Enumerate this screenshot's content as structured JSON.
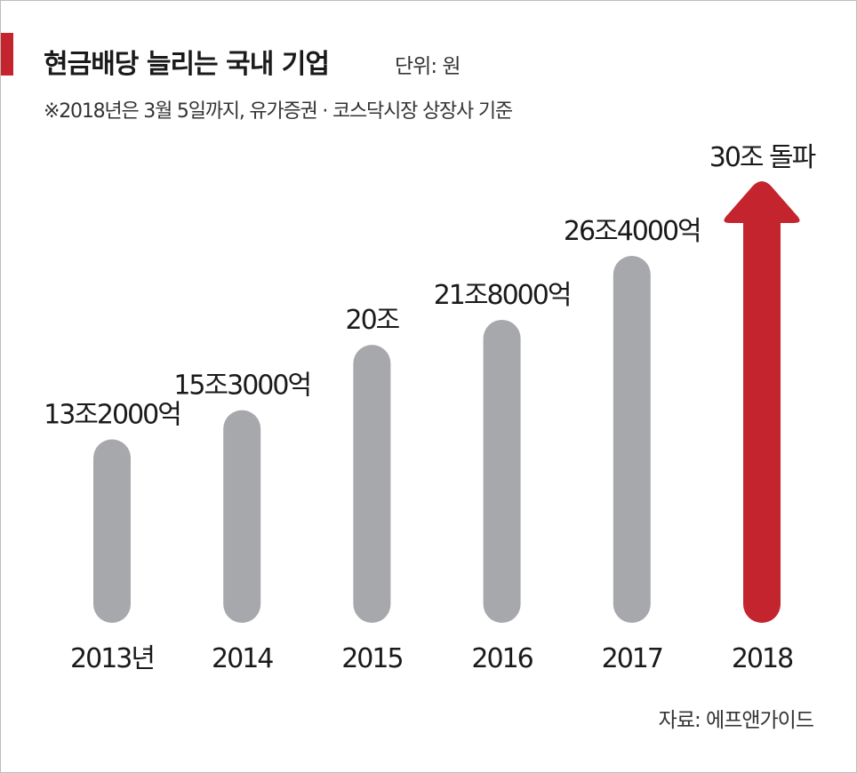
{
  "header": {
    "title": "현금배당 늘리는 국내 기업",
    "unit": "단위: 원",
    "note": "※2018년은 3월 5일까지, 유가증권 · 코스닥시장 상장사 기준"
  },
  "footer": {
    "source": "자료: 에프앤가이드"
  },
  "colors": {
    "bar": "#a7a8ab",
    "highlight": "#c4242e",
    "accent": "#c4242e"
  },
  "chart_data": {
    "type": "bar",
    "title": "현금배당 늘리는 국내 기업",
    "unit": "단위: 원",
    "categories": [
      "2013년",
      "2014",
      "2015",
      "2016",
      "2017",
      "2018"
    ],
    "values": [
      132000,
      153000,
      200000,
      218000,
      264000,
      300000
    ],
    "value_unit": "억 원",
    "data_labels": [
      "13조2000억",
      "15조3000억",
      "20조",
      "21조8000억",
      "26조4000억",
      "30조 돌파"
    ],
    "highlight_index": 5,
    "highlight_style": "arrow",
    "grid": false,
    "legend": "none"
  }
}
